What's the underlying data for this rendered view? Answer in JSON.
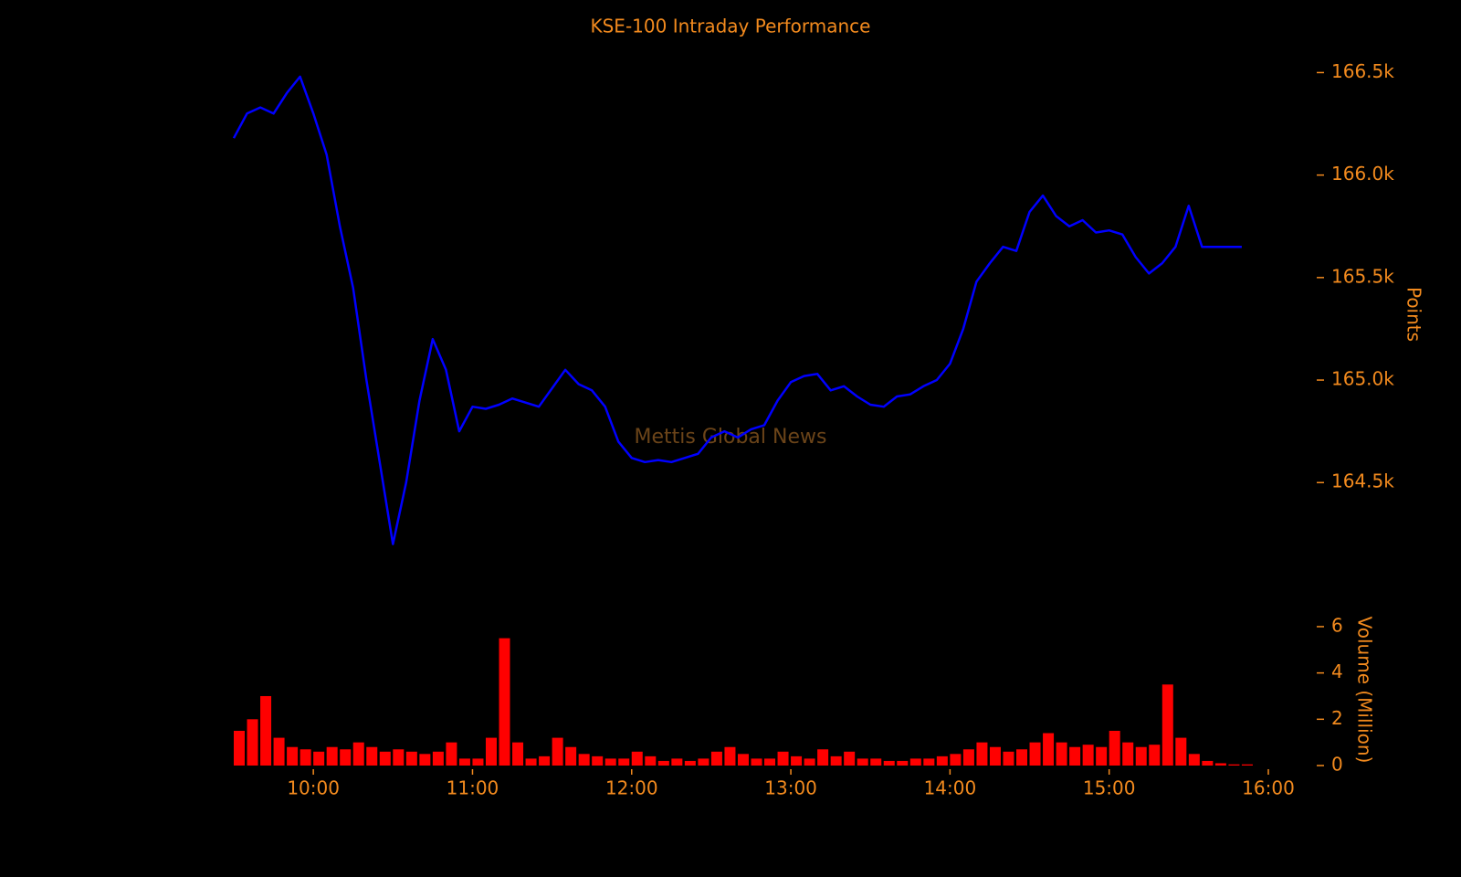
{
  "chart_data": [
    {
      "type": "line",
      "title": "KSE-100 Intraday Performance",
      "y_label": "Points",
      "annotation": "Mettis Global News",
      "x": [
        "09:30",
        "09:35",
        "09:40",
        "09:45",
        "09:50",
        "09:55",
        "10:00",
        "10:05",
        "10:10",
        "10:15",
        "10:20",
        "10:25",
        "10:30",
        "10:35",
        "10:40",
        "10:45",
        "10:50",
        "10:55",
        "11:00",
        "11:05",
        "11:10",
        "11:15",
        "11:20",
        "11:25",
        "11:30",
        "11:35",
        "11:40",
        "11:45",
        "11:50",
        "11:55",
        "12:00",
        "12:05",
        "12:10",
        "12:15",
        "12:20",
        "12:25",
        "12:30",
        "12:35",
        "12:40",
        "12:45",
        "12:50",
        "12:55",
        "13:00",
        "13:05",
        "13:10",
        "13:15",
        "13:20",
        "13:25",
        "13:30",
        "13:35",
        "13:40",
        "13:45",
        "13:50",
        "13:55",
        "14:00",
        "14:05",
        "14:10",
        "14:15",
        "14:20",
        "14:25",
        "14:30",
        "14:35",
        "14:40",
        "14:45",
        "14:50",
        "14:55",
        "15:00",
        "15:05",
        "15:10",
        "15:15",
        "15:20",
        "15:25",
        "15:30",
        "15:35",
        "15:40",
        "15:45",
        "15:50"
      ],
      "series": [
        {
          "name": "KSE-100",
          "color": "#0000ff",
          "values": [
            166180,
            166300,
            166330,
            166300,
            166400,
            166480,
            166300,
            166100,
            165750,
            165450,
            165000,
            164600,
            164200,
            164500,
            164900,
            165200,
            165050,
            164750,
            164870,
            164860,
            164880,
            164910,
            164890,
            164870,
            164960,
            165050,
            164980,
            164950,
            164870,
            164700,
            164620,
            164600,
            164610,
            164600,
            164620,
            164640,
            164720,
            164750,
            164720,
            164760,
            164780,
            164900,
            164990,
            165020,
            165030,
            164950,
            164970,
            164920,
            164880,
            164870,
            164920,
            164930,
            164970,
            165000,
            165080,
            165250,
            165480,
            165570,
            165650,
            165630,
            165820,
            165900,
            165800,
            165750,
            165780,
            165720,
            165730,
            165710,
            165600,
            165520,
            165570,
            165650,
            165850,
            165650,
            165650,
            165650,
            165650
          ]
        }
      ],
      "xlim": [
        "09:30",
        "16:00"
      ],
      "ylim": [
        164100,
        166600
      ],
      "yticks": [
        {
          "value": 164500,
          "label": "164.5k"
        },
        {
          "value": 165000,
          "label": "165.0k"
        },
        {
          "value": 165500,
          "label": "165.5k"
        },
        {
          "value": 166000,
          "label": "166.0k"
        },
        {
          "value": 166500,
          "label": "166.5k"
        }
      ]
    },
    {
      "type": "bar",
      "y_label": "Volume (Million)",
      "x": [
        "09:30",
        "09:35",
        "09:40",
        "09:45",
        "09:50",
        "09:55",
        "10:00",
        "10:05",
        "10:10",
        "10:15",
        "10:20",
        "10:25",
        "10:30",
        "10:35",
        "10:40",
        "10:45",
        "10:50",
        "10:55",
        "11:00",
        "11:05",
        "11:10",
        "11:15",
        "11:20",
        "11:25",
        "11:30",
        "11:35",
        "11:40",
        "11:45",
        "11:50",
        "11:55",
        "12:00",
        "12:05",
        "12:10",
        "12:15",
        "12:20",
        "12:25",
        "12:30",
        "12:35",
        "12:40",
        "12:45",
        "12:50",
        "12:55",
        "13:00",
        "13:05",
        "13:10",
        "13:15",
        "13:20",
        "13:25",
        "13:30",
        "13:35",
        "13:40",
        "13:45",
        "13:50",
        "13:55",
        "14:00",
        "14:05",
        "14:10",
        "14:15",
        "14:20",
        "14:25",
        "14:30",
        "14:35",
        "14:40",
        "14:45",
        "14:50",
        "14:55",
        "15:00",
        "15:05",
        "15:10",
        "15:15",
        "15:20",
        "15:25",
        "15:30",
        "15:35",
        "15:40",
        "15:45",
        "15:50"
      ],
      "series": [
        {
          "name": "Volume",
          "color": "#ff0000",
          "values": [
            1.5,
            2.0,
            3.0,
            1.2,
            0.8,
            0.7,
            0.6,
            0.8,
            0.7,
            1.0,
            0.8,
            0.6,
            0.7,
            0.6,
            0.5,
            0.6,
            1.0,
            0.3,
            0.3,
            1.2,
            5.5,
            1.0,
            0.3,
            0.4,
            1.2,
            0.8,
            0.5,
            0.4,
            0.3,
            0.3,
            0.6,
            0.4,
            0.2,
            0.3,
            0.2,
            0.3,
            0.6,
            0.8,
            0.5,
            0.3,
            0.3,
            0.6,
            0.4,
            0.3,
            0.7,
            0.4,
            0.6,
            0.3,
            0.3,
            0.2,
            0.2,
            0.3,
            0.3,
            0.4,
            0.5,
            0.7,
            1.0,
            0.8,
            0.6,
            0.7,
            1.0,
            1.4,
            1.0,
            0.8,
            0.9,
            0.8,
            1.5,
            1.0,
            0.8,
            0.9,
            3.5,
            1.2,
            0.5,
            0.2,
            0.1,
            0.05,
            0.05
          ]
        }
      ],
      "xlim": [
        "09:30",
        "16:00"
      ],
      "ylim": [
        0,
        7.3
      ],
      "yticks": [
        0,
        2,
        4,
        6
      ],
      "xticks": [
        "10:00",
        "11:00",
        "12:00",
        "13:00",
        "14:00",
        "15:00",
        "16:00"
      ]
    }
  ]
}
